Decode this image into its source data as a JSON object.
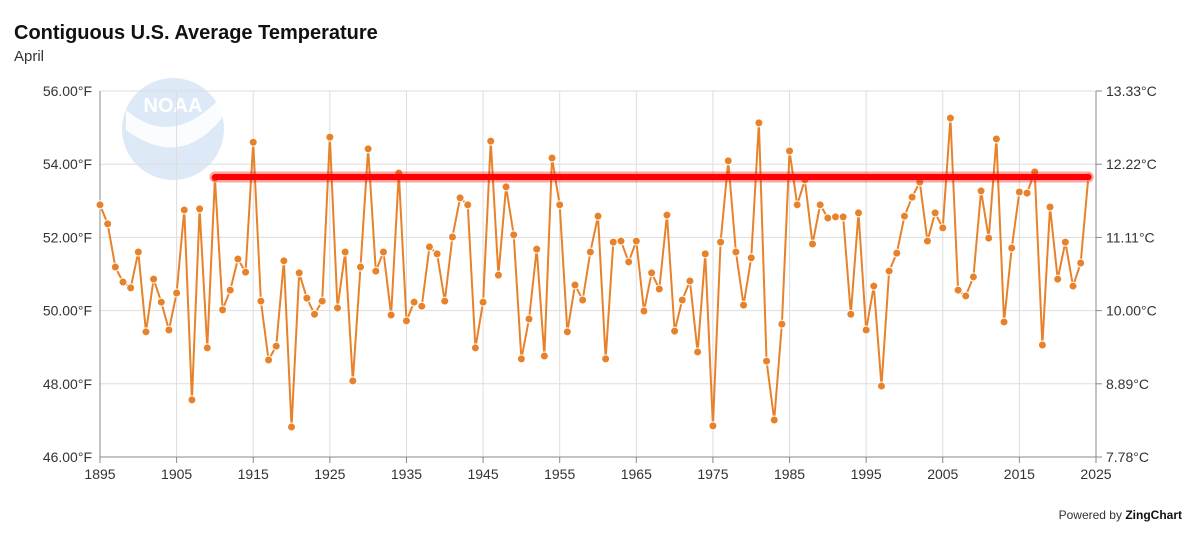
{
  "header": {
    "title": "Contiguous U.S. Average Temperature",
    "subtitle": "April"
  },
  "credit": {
    "prefix": "Powered by",
    "brand": "ZingChart"
  },
  "logo": {
    "text": "NOAA"
  },
  "colors": {
    "series": "#e8822a",
    "highlight": "#ff0000",
    "grid": "#dddddd"
  },
  "chart_data": {
    "type": "line",
    "title": "Contiguous U.S. Average Temperature",
    "subtitle": "April",
    "xlim": [
      1895,
      2025
    ],
    "ylim": [
      46,
      56
    ],
    "grid": true,
    "x_ticks": [
      "1895",
      "1905",
      "1915",
      "1925",
      "1935",
      "1945",
      "1955",
      "1965",
      "1975",
      "1985",
      "1995",
      "2005",
      "2015",
      "2025"
    ],
    "y_ticks_left": [
      "56.00°F",
      "54.00°F",
      "52.00°F",
      "50.00°F",
      "48.00°F",
      "46.00°F"
    ],
    "y_ticks_right": [
      "13.33°C",
      "12.22°C",
      "11.11°C",
      "10.00°C",
      "8.89°C",
      "7.78°C"
    ],
    "start_year": 1895,
    "values": [
      52.89,
      52.37,
      51.19,
      50.78,
      50.62,
      51.6,
      49.42,
      50.86,
      50.23,
      49.47,
      50.48,
      52.75,
      47.56,
      52.78,
      48.98,
      53.62,
      50.02,
      50.56,
      51.41,
      51.05,
      54.6,
      50.26,
      48.65,
      49.03,
      51.36,
      46.82,
      51.03,
      50.34,
      49.9,
      50.26,
      54.74,
      50.07,
      51.6,
      48.08,
      51.19,
      54.42,
      51.08,
      51.6,
      49.88,
      53.76,
      49.72,
      50.23,
      50.12,
      51.74,
      51.55,
      50.26,
      52.01,
      53.08,
      52.89,
      48.98,
      50.23,
      54.63,
      50.97,
      53.38,
      52.07,
      48.68,
      49.77,
      51.68,
      48.76,
      54.17,
      52.89,
      49.42,
      50.7,
      50.29,
      51.6,
      52.58,
      48.68,
      51.87,
      51.9,
      51.33,
      51.9,
      49.99,
      51.03,
      50.59,
      52.61,
      49.44,
      50.29,
      50.81,
      48.87,
      51.55,
      46.85,
      51.87,
      54.09,
      51.6,
      50.15,
      51.44,
      55.13,
      48.62,
      47.01,
      49.63,
      54.36,
      52.89,
      53.57,
      51.82,
      52.89,
      52.53,
      52.56,
      52.56,
      49.9,
      52.67,
      49.47,
      50.67,
      47.94,
      51.08,
      51.57,
      52.58,
      53.1,
      53.51,
      51.9,
      52.67,
      52.26,
      55.26,
      50.56,
      50.4,
      50.92,
      53.27,
      51.98,
      54.69,
      49.69,
      51.71,
      53.24,
      53.21,
      53.79,
      49.06,
      52.83,
      50.86,
      51.87,
      50.67,
      51.3,
      53.65
    ],
    "highlight_line": {
      "value": 53.65,
      "from_year": 1910,
      "to_year": 2024
    }
  }
}
